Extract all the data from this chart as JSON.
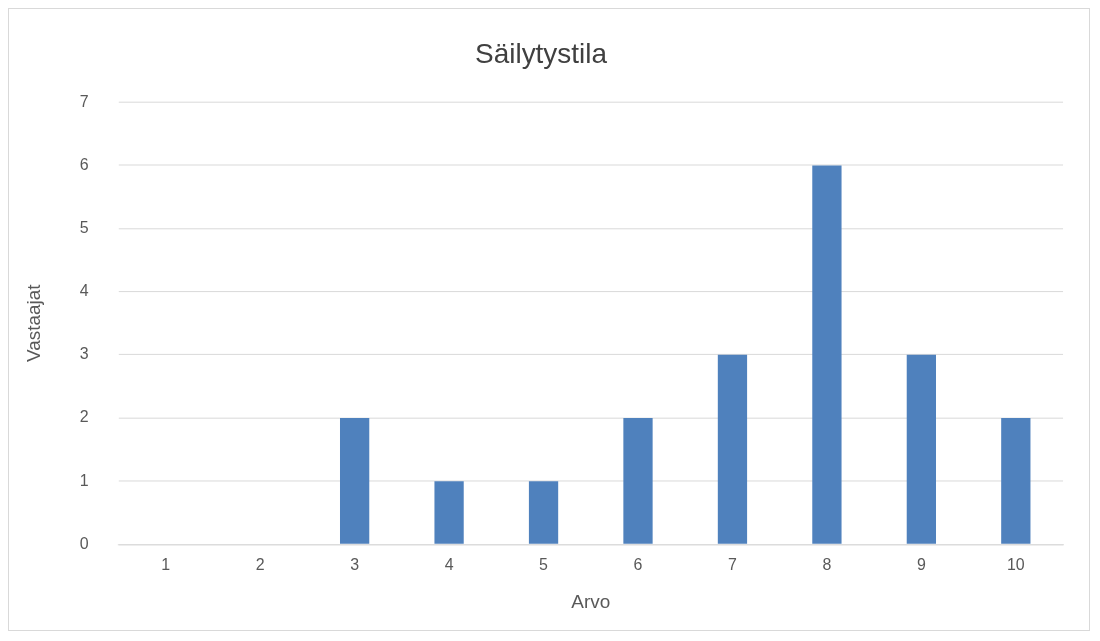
{
  "chart_data": {
    "type": "bar",
    "title": "Säilytystila",
    "xlabel": "Arvo",
    "ylabel": "Vastaajat",
    "categories": [
      "1",
      "2",
      "3",
      "4",
      "5",
      "6",
      "7",
      "8",
      "9",
      "10"
    ],
    "values": [
      0,
      0,
      2,
      1,
      1,
      2,
      3,
      6,
      3,
      2
    ],
    "color": "#4f81bd",
    "ylim": [
      0,
      7
    ],
    "yticks": [
      0,
      1,
      2,
      3,
      4,
      5,
      6,
      7
    ],
    "grid": "y"
  }
}
